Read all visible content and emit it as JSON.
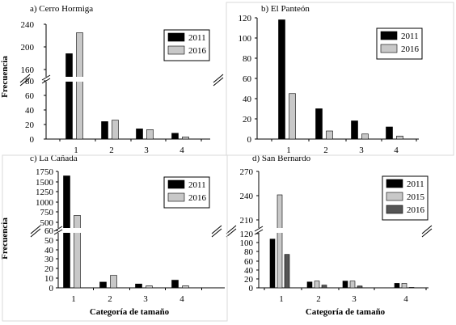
{
  "colors": {
    "s2011": "#000000",
    "s2015": "#c8c8c8",
    "s2016_a": "#c8c8c8",
    "s2016_d": "#555555"
  },
  "chart_data": [
    {
      "type": "bar",
      "title": "a) Cerro Hormiga",
      "ylabel": "Frecuencia",
      "xlabel": "",
      "categories": [
        "1",
        "2",
        "3",
        "4"
      ],
      "series": [
        {
          "name": "2011",
          "values": [
            188,
            24,
            14,
            8
          ]
        },
        {
          "name": "2016",
          "values": [
            225,
            26,
            13,
            3
          ]
        }
      ],
      "y_ticks": [
        "0",
        "20",
        "40",
        "60",
        "80",
        "160",
        "200",
        "240"
      ],
      "y_axis_break": true,
      "legend": "top-right"
    },
    {
      "type": "bar",
      "title": "b) El Panteón",
      "ylabel": "",
      "xlabel": "",
      "categories": [
        "1",
        "2",
        "3",
        "4"
      ],
      "series": [
        {
          "name": "2011",
          "values": [
            118,
            30,
            18,
            12
          ]
        },
        {
          "name": "2016",
          "values": [
            45,
            8,
            5,
            3
          ]
        }
      ],
      "y_ticks": [
        "0",
        "20",
        "40",
        "60",
        "80",
        "100",
        "120"
      ],
      "ylim": [
        0,
        120
      ],
      "legend": "top-right"
    },
    {
      "type": "bar",
      "title": "c) La Cañada",
      "ylabel": "Frecuencia",
      "xlabel": "Categoría de tamaño",
      "categories": [
        "1",
        "2",
        "3",
        "4"
      ],
      "series": [
        {
          "name": "2011",
          "values": [
            1640,
            6,
            4,
            8
          ]
        },
        {
          "name": "2016",
          "values": [
            670,
            13,
            2,
            2
          ]
        }
      ],
      "y_ticks": [
        "0",
        "10",
        "20",
        "30",
        "40",
        "50",
        "60",
        "500",
        "750",
        "1000",
        "1250",
        "1500",
        "1750"
      ],
      "y_axis_break": true,
      "legend": "top-right"
    },
    {
      "type": "bar",
      "title": "d) San Bernardo",
      "ylabel": "",
      "xlabel": "Categoría de tamaño",
      "categories": [
        "1",
        "2",
        "3",
        "4"
      ],
      "series": [
        {
          "name": "2011",
          "values": [
            108,
            13,
            15,
            10
          ]
        },
        {
          "name": "2015",
          "values": [
            241,
            15,
            15,
            10
          ]
        },
        {
          "name": "2016",
          "values": [
            74,
            6,
            4,
            1
          ]
        }
      ],
      "y_ticks": [
        "0",
        "20",
        "40",
        "60",
        "80",
        "100",
        "120",
        "210",
        "240",
        "270"
      ],
      "y_axis_break": true,
      "legend": "top-right"
    }
  ]
}
